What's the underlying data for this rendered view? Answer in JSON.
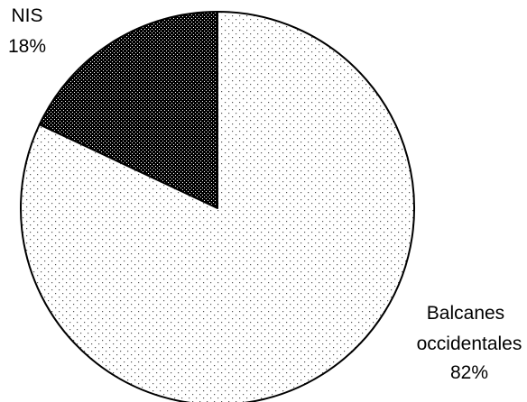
{
  "chart_data": {
    "type": "pie",
    "title": "",
    "slices": [
      {
        "category": "NIS",
        "percent_label": "18%",
        "value": 18,
        "pattern": "dense-dots",
        "fill_color": "#000000",
        "dot_color": "#ffffff"
      },
      {
        "category": "Balcanes occidentales",
        "category_lines": [
          "Balcanes",
          "occidentales"
        ],
        "percent_label": "82%",
        "value": 82,
        "pattern": "sparse-dots",
        "fill_color": "#ffffff",
        "dot_color": "#000000"
      }
    ],
    "start_angle": "12 o'clock",
    "direction": "counter-clockwise",
    "outline_color": "#000000"
  }
}
